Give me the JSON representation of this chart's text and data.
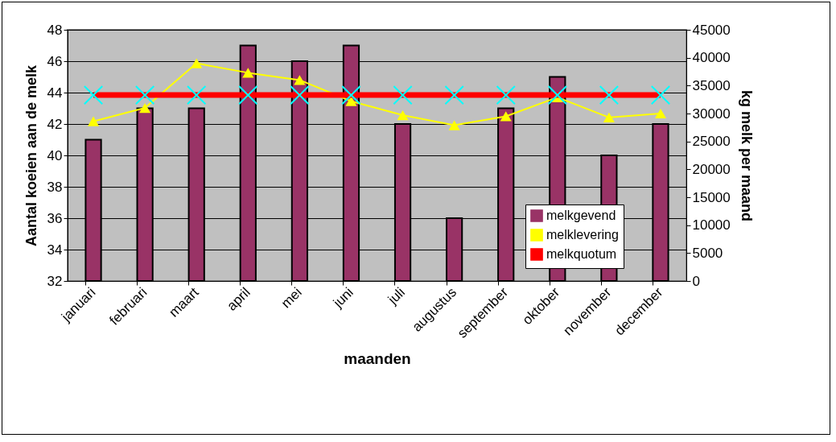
{
  "chart_data": {
    "type": "bar",
    "xlabel": "maanden",
    "ylabel": "Aantal koeien aan de melk",
    "y2label": "kg melk per maand",
    "categories": [
      "januari",
      "februari",
      "maart",
      "april",
      "mei",
      "juni",
      "juli",
      "augustus",
      "september",
      "oktober",
      "november",
      "december"
    ],
    "series": [
      {
        "name": "melkgevend",
        "color": "#993366",
        "values": [
          41,
          43,
          43,
          47,
          46,
          47,
          42,
          36,
          43,
          45,
          40,
          42
        ]
      },
      {
        "name": "melklevering",
        "type": "line",
        "axis": "y2",
        "marker": "triangle",
        "color": "#ffff00",
        "values": [
          28600,
          31000,
          39000,
          37300,
          36000,
          32200,
          29700,
          27900,
          29500,
          32900,
          29300,
          30000
        ]
      },
      {
        "name": "melkquotum",
        "type": "line",
        "axis": "y2",
        "marker": "cross",
        "color": "#ff0000",
        "values": [
          33300,
          33300,
          33300,
          33300,
          33300,
          33300,
          33300,
          33300,
          33300,
          33300,
          33300,
          33300
        ]
      }
    ],
    "ylim": [
      32,
      48
    ],
    "yticks": [
      32,
      34,
      36,
      38,
      40,
      42,
      44,
      46,
      48
    ],
    "y2lim": [
      0,
      45000
    ],
    "y2ticks": [
      0,
      5000,
      10000,
      15000,
      20000,
      25000,
      30000,
      35000,
      40000,
      45000
    ],
    "grid": "y",
    "legend": "bottom right"
  }
}
